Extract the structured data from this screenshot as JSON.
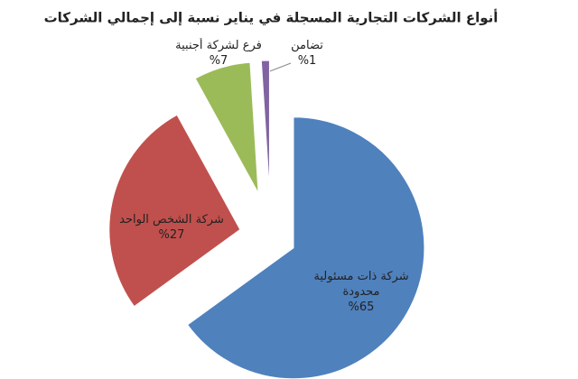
{
  "chart_data": {
    "type": "pie",
    "title": "أنواع الشركات التجارية المسجلة في يناير نسبة إلى إجمالي الشركات",
    "categories": [
      "شركة ذات مسئولية محدودة",
      "شركة الشخص الواحد",
      "فرع لشركة أجنبية",
      "تضامن"
    ],
    "values": [
      65,
      27,
      7,
      1
    ],
    "value_labels": [
      "%65",
      "%27",
      "%7",
      "%1"
    ],
    "colors": [
      "#4f81bd",
      "#c0504d",
      "#9bbb59",
      "#8064a2"
    ]
  }
}
